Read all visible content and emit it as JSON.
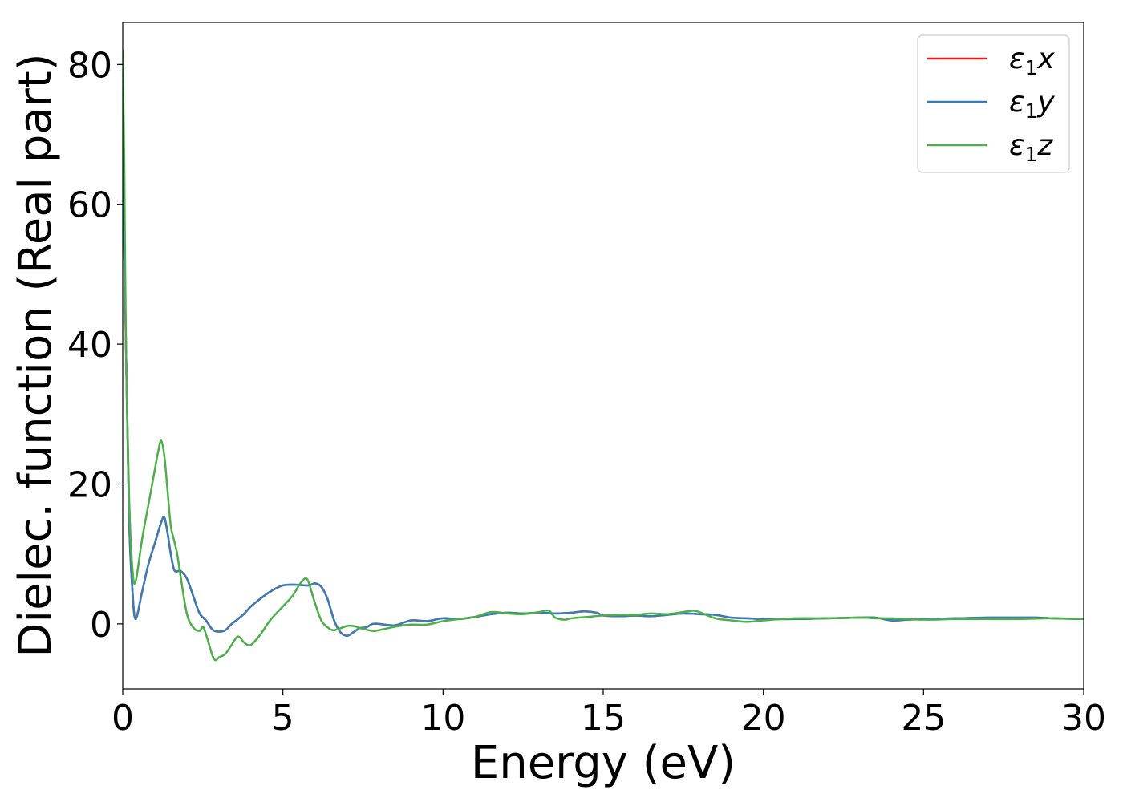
{
  "chart_data": {
    "type": "line",
    "xlabel": "Energy (eV)",
    "ylabel": "Dielec. function (Real part)",
    "xlim": [
      0,
      30
    ],
    "ylim": [
      -9.3,
      86
    ],
    "xticks": [
      0,
      5,
      10,
      15,
      20,
      25,
      30
    ],
    "yticks": [
      0,
      20,
      40,
      60,
      80
    ],
    "grid": false,
    "legend_position": "top-right",
    "series": [
      {
        "name": "ε₁x",
        "legend_base": "ε",
        "legend_sub": "1",
        "legend_var": "x",
        "color": "#e41a1c",
        "x": [
          0,
          0.1,
          0.2,
          0.3,
          0.4,
          0.6,
          0.8,
          1.0,
          1.2,
          1.3,
          1.4,
          1.5,
          1.6,
          1.7,
          1.8,
          2.0,
          2.2,
          2.4,
          2.6,
          2.8,
          3.0,
          3.2,
          3.4,
          3.6,
          3.8,
          4.0,
          4.3,
          4.6,
          5.0,
          5.4,
          5.8,
          6.0,
          6.2,
          6.4,
          6.6,
          6.8,
          7.0,
          7.2,
          7.4,
          7.6,
          7.8,
          8.0,
          8.5,
          9.0,
          9.5,
          10.0,
          10.5,
          11.0,
          11.5,
          12.0,
          12.5,
          13.0,
          13.5,
          14.0,
          14.4,
          14.8,
          15.0,
          15.5,
          16.0,
          16.5,
          17.0,
          17.5,
          18.0,
          18.5,
          19.0,
          19.5,
          20.0,
          21.0,
          22.0,
          23.0,
          23.5,
          24.0,
          24.5,
          25.0,
          26.0,
          27.0,
          28.0,
          28.5,
          29.0,
          30.0
        ],
        "y": [
          67,
          40,
          15,
          5,
          0.7,
          4.5,
          8.5,
          11.5,
          14.5,
          15.2,
          13.0,
          10.0,
          7.8,
          7.5,
          7.6,
          6.5,
          4.0,
          1.5,
          0.5,
          -0.8,
          -1.1,
          -0.9,
          0.0,
          0.7,
          1.5,
          2.5,
          3.6,
          4.6,
          5.5,
          5.6,
          5.5,
          5.8,
          5.3,
          3.5,
          0.5,
          -1.2,
          -1.7,
          -1.2,
          -0.6,
          -0.5,
          0.0,
          0.0,
          -0.2,
          0.5,
          0.4,
          0.8,
          0.7,
          1.0,
          1.4,
          1.6,
          1.5,
          1.6,
          1.5,
          1.6,
          1.8,
          1.6,
          1.2,
          1.1,
          1.2,
          1.1,
          1.3,
          1.5,
          1.4,
          1.3,
          0.9,
          0.8,
          0.7,
          0.7,
          0.8,
          0.9,
          0.9,
          0.5,
          0.6,
          0.7,
          0.8,
          0.9,
          0.9,
          0.9,
          0.8,
          0.7
        ]
      },
      {
        "name": "ε₁y",
        "legend_base": "ε",
        "legend_sub": "1",
        "legend_var": "y",
        "color": "#377eb8",
        "x": [
          0,
          0.1,
          0.2,
          0.3,
          0.4,
          0.6,
          0.8,
          1.0,
          1.2,
          1.3,
          1.4,
          1.5,
          1.6,
          1.7,
          1.8,
          2.0,
          2.2,
          2.4,
          2.6,
          2.8,
          3.0,
          3.2,
          3.4,
          3.6,
          3.8,
          4.0,
          4.3,
          4.6,
          5.0,
          5.4,
          5.8,
          6.0,
          6.2,
          6.4,
          6.6,
          6.8,
          7.0,
          7.2,
          7.4,
          7.6,
          7.8,
          8.0,
          8.5,
          9.0,
          9.5,
          10.0,
          10.5,
          11.0,
          11.5,
          12.0,
          12.5,
          13.0,
          13.5,
          14.0,
          14.4,
          14.8,
          15.0,
          15.5,
          16.0,
          16.5,
          17.0,
          17.5,
          18.0,
          18.5,
          19.0,
          19.5,
          20.0,
          21.0,
          22.0,
          23.0,
          23.5,
          24.0,
          24.5,
          25.0,
          26.0,
          27.0,
          28.0,
          28.5,
          29.0,
          30.0
        ],
        "y": [
          67,
          40,
          15,
          5,
          0.7,
          4.5,
          8.5,
          11.5,
          14.5,
          15.2,
          13.0,
          10.0,
          7.8,
          7.5,
          7.6,
          6.5,
          4.0,
          1.5,
          0.5,
          -0.8,
          -1.1,
          -0.9,
          0.0,
          0.7,
          1.5,
          2.5,
          3.6,
          4.6,
          5.5,
          5.6,
          5.5,
          5.8,
          5.3,
          3.5,
          0.5,
          -1.2,
          -1.7,
          -1.2,
          -0.6,
          -0.5,
          0.0,
          0.0,
          -0.2,
          0.5,
          0.4,
          0.8,
          0.7,
          1.0,
          1.4,
          1.6,
          1.5,
          1.6,
          1.5,
          1.6,
          1.8,
          1.6,
          1.2,
          1.1,
          1.2,
          1.1,
          1.3,
          1.5,
          1.4,
          1.3,
          0.9,
          0.8,
          0.7,
          0.7,
          0.8,
          0.9,
          0.9,
          0.5,
          0.6,
          0.7,
          0.8,
          0.9,
          0.9,
          0.9,
          0.8,
          0.7
        ]
      },
      {
        "name": "ε₁z",
        "legend_base": "ε",
        "legend_sub": "1",
        "legend_var": "z",
        "color": "#4daf4a",
        "x": [
          0,
          0.05,
          0.1,
          0.2,
          0.3,
          0.4,
          0.6,
          0.8,
          1.0,
          1.1,
          1.2,
          1.3,
          1.4,
          1.5,
          1.6,
          1.7,
          1.8,
          2.0,
          2.2,
          2.4,
          2.5,
          2.6,
          2.8,
          2.9,
          3.0,
          3.2,
          3.4,
          3.6,
          3.8,
          4.0,
          4.3,
          4.6,
          5.0,
          5.3,
          5.5,
          5.6,
          5.7,
          5.8,
          6.0,
          6.2,
          6.4,
          6.6,
          7.0,
          7.2,
          7.5,
          7.8,
          8.0,
          8.5,
          9.0,
          9.5,
          10.0,
          10.5,
          11.0,
          11.5,
          12.0,
          12.5,
          13.0,
          13.3,
          13.5,
          13.8,
          14.0,
          14.5,
          15.0,
          15.5,
          16.0,
          16.5,
          17.0,
          17.5,
          17.8,
          18.0,
          18.5,
          19.0,
          19.5,
          20.0,
          21.0,
          22.0,
          23.0,
          23.5,
          24.0,
          25.0,
          26.0,
          27.0,
          28.0,
          29.0,
          30.0
        ],
        "y": [
          82,
          65,
          40,
          18,
          8,
          6,
          12,
          17,
          22,
          24.5,
          26.2,
          24,
          19,
          14,
          12,
          10,
          7,
          1.5,
          -0.5,
          -1.0,
          -0.4,
          -1.5,
          -4.5,
          -5.2,
          -4.8,
          -4.3,
          -3.0,
          -1.8,
          -2.7,
          -3.0,
          -1.5,
          0.5,
          2.5,
          4.0,
          5.5,
          6.1,
          6.5,
          6.0,
          3.0,
          0.5,
          -0.5,
          -0.9,
          -0.3,
          -0.3,
          -0.7,
          -1.0,
          -0.9,
          -0.4,
          -0.1,
          -0.1,
          0.4,
          0.7,
          1.0,
          1.7,
          1.5,
          1.4,
          1.7,
          1.9,
          0.9,
          0.6,
          0.8,
          1.0,
          1.2,
          1.3,
          1.3,
          1.5,
          1.4,
          1.7,
          1.9,
          1.7,
          0.8,
          0.5,
          0.3,
          0.5,
          0.8,
          0.8,
          0.9,
          0.8,
          0.8,
          0.6,
          0.7,
          0.7,
          0.7,
          0.8,
          0.7
        ]
      }
    ]
  }
}
